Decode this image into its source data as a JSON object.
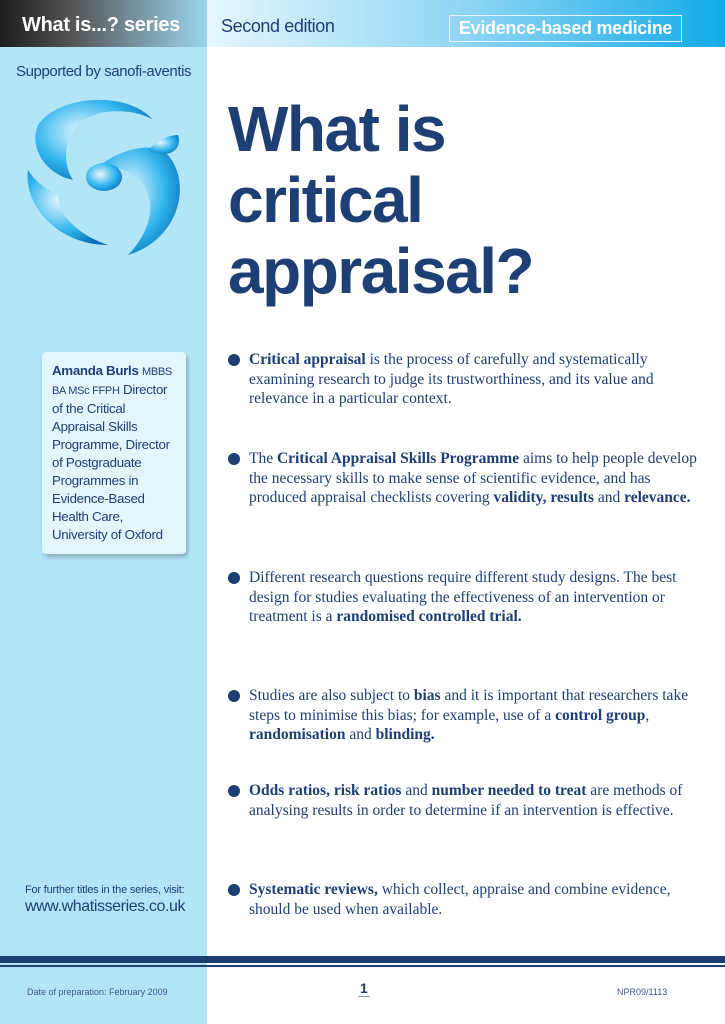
{
  "header": {
    "series": "What is...? series",
    "edition": "Second edition",
    "category": "Evidence-based medicine"
  },
  "sidebar": {
    "supported": "Supported by sanofi-aventis",
    "author": {
      "name": "Amanda Burls",
      "quals": "MBBS BA MSc FFPH",
      "role": "Director of the Critical Appraisal Skills Programme, Director of Postgraduate Programmes in Evidence-Based Health Care, University of Oxford"
    },
    "further": "For further titles in the series, visit:",
    "url": "www.whatisseries.co.uk"
  },
  "title": [
    "What is",
    "critical",
    "appraisal?"
  ],
  "bullets": [
    [
      {
        "b": "Critical appraisal"
      },
      {
        "t": " is the process of carefully and systematically examining research to judge its trustworthiness, and its value and relevance in a particular context."
      }
    ],
    [
      {
        "t": "The "
      },
      {
        "b": "Critical Appraisal Skills Programme"
      },
      {
        "t": " aims to help people develop the necessary skills to make sense of scientific evidence, and has produced appraisal checklists covering "
      },
      {
        "b": "validity, results"
      },
      {
        "t": " and "
      },
      {
        "b": "relevance."
      }
    ],
    [
      {
        "t": "Different research questions require different study designs. The best design for studies evaluating the effectiveness of an intervention or treatment is a "
      },
      {
        "b": "randomised controlled trial."
      }
    ],
    [
      {
        "t": "Studies are also subject to "
      },
      {
        "b": "bias"
      },
      {
        "t": " and it is important that researchers take steps to minimise this bias; for example, use of a "
      },
      {
        "b": "control group"
      },
      {
        "t": ", "
      },
      {
        "b": "randomisation"
      },
      {
        "t": " and "
      },
      {
        "b": "blinding."
      }
    ],
    [
      {
        "b": "Odds ratios, risk ratios"
      },
      {
        "t": " and "
      },
      {
        "b": "number needed to treat"
      },
      {
        "t": " are methods of analysing results in order to determine if an intervention is effective."
      }
    ],
    [
      {
        "b": "Systematic reviews,"
      },
      {
        "t": " which collect, appraise and combine evidence, should be used when available."
      }
    ]
  ],
  "footer": {
    "date": "Date of preparation: February 2009",
    "page": "1",
    "code": "NPR09/1113"
  },
  "colors": {
    "navy": "#1d3f73",
    "sidebar": "#b3e5f9",
    "accent": "#13aae8"
  }
}
